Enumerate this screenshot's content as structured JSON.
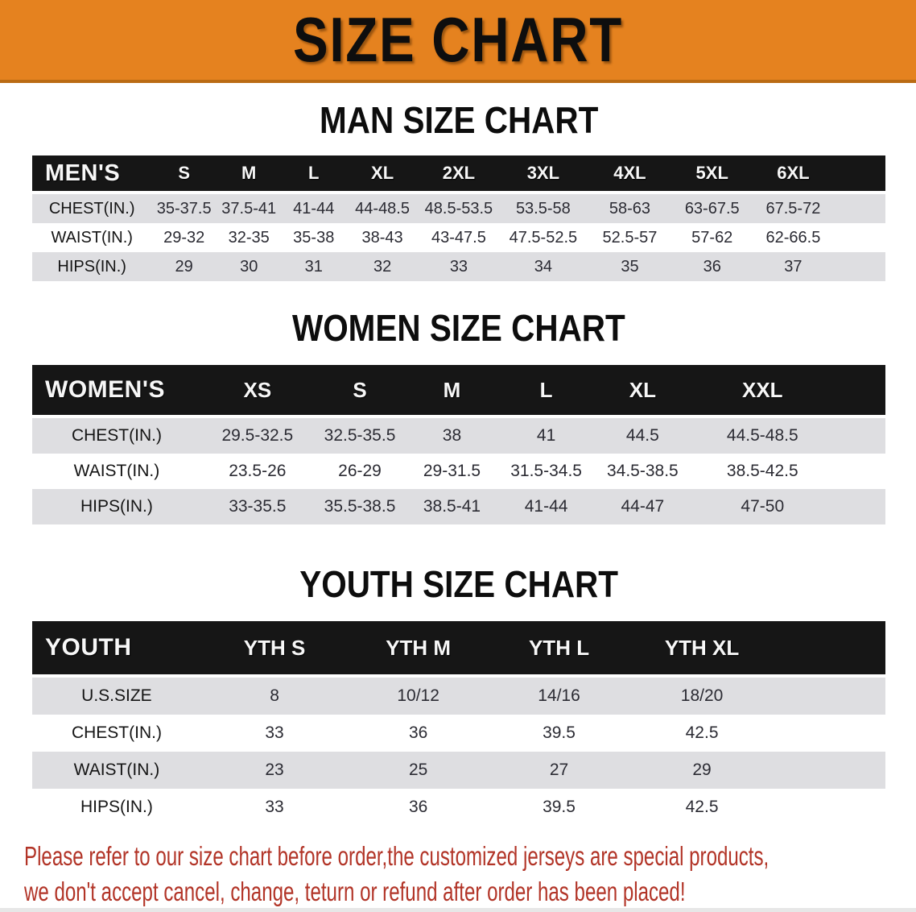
{
  "banner": {
    "title": "SIZE CHART"
  },
  "sections": [
    {
      "heading": "MAN SIZE CHART",
      "corner_label": "MEN'S",
      "columns": [
        "S",
        "M",
        "L",
        "XL",
        "2XL",
        "3XL",
        "4XL",
        "5XL",
        "6XL"
      ],
      "rows": [
        {
          "label": "CHEST(IN.)",
          "values": [
            "35-37.5",
            "37.5-41",
            "41-44",
            "44-48.5",
            "48.5-53.5",
            "53.5-58",
            "58-63",
            "63-67.5",
            "67.5-72"
          ]
        },
        {
          "label": "WAIST(IN.)",
          "values": [
            "29-32",
            "32-35",
            "35-38",
            "38-43",
            "43-47.5",
            "47.5-52.5",
            "52.5-57",
            "57-62",
            "62-66.5"
          ]
        },
        {
          "label": "HIPS(IN.)",
          "values": [
            "29",
            "30",
            "31",
            "32",
            "33",
            "34",
            "35",
            "36",
            "37"
          ]
        }
      ]
    },
    {
      "heading": "WOMEN SIZE CHART",
      "corner_label": "WOMEN'S",
      "columns": [
        "XS",
        "S",
        "M",
        "L",
        "XL",
        "XXL"
      ],
      "rows": [
        {
          "label": "CHEST(IN.)",
          "values": [
            "29.5-32.5",
            "32.5-35.5",
            "38",
            "41",
            "44.5",
            "44.5-48.5"
          ]
        },
        {
          "label": "WAIST(IN.)",
          "values": [
            "23.5-26",
            "26-29",
            "29-31.5",
            "31.5-34.5",
            "34.5-38.5",
            "38.5-42.5"
          ]
        },
        {
          "label": "HIPS(IN.)",
          "values": [
            "33-35.5",
            "35.5-38.5",
            "38.5-41",
            "41-44",
            "44-47",
            "47-50"
          ]
        }
      ]
    },
    {
      "heading": "YOUTH SIZE CHART",
      "corner_label": "YOUTH",
      "columns": [
        "YTH S",
        "YTH M",
        "YTH L",
        "YTH XL"
      ],
      "rows": [
        {
          "label": "U.S.SIZE",
          "values": [
            "8",
            "10/12",
            "14/16",
            "18/20"
          ]
        },
        {
          "label": "CHEST(IN.)",
          "values": [
            "33",
            "36",
            "39.5",
            "42.5"
          ]
        },
        {
          "label": "WAIST(IN.)",
          "values": [
            "23",
            "25",
            "27",
            "29"
          ]
        },
        {
          "label": "HIPS(IN.)",
          "values": [
            "33",
            "36",
            "39.5",
            "42.5"
          ]
        }
      ]
    }
  ],
  "disclaimer": {
    "line1": "Please refer to our size chart before order,the customized jerseys are special products,",
    "line2": "we don't accept cancel, change, teturn or refund after order has been placed!"
  },
  "colors": {
    "accent_orange": "#E5821F",
    "banner_edge": "#BA6B13",
    "header_bar_black": "#161616",
    "row_gray": "#DEDEE1",
    "disclaimer_red": "#B23427"
  }
}
